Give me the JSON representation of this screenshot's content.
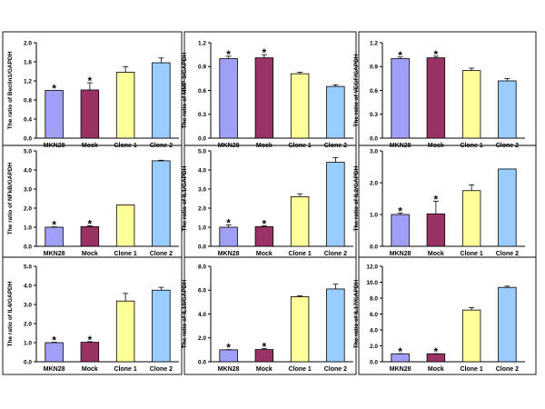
{
  "colors": [
    "#9f9ff5",
    "#993366",
    "#ffff99",
    "#99ccff"
  ],
  "chart_data": [
    {
      "type": "bar",
      "ylabel": "The ratio of Beclin1/GAPDH",
      "categories": [
        "MKN28",
        "Mock",
        "Clone 1",
        "Clone 2"
      ],
      "values": [
        1.0,
        1.01,
        1.38,
        1.58
      ],
      "errors": [
        0.0,
        0.15,
        0.12,
        0.1
      ],
      "significant": [
        true,
        true,
        false,
        false
      ],
      "ylim": [
        0,
        2.0
      ],
      "yticks": [
        "0.0",
        "0.4",
        "0.8",
        "1.2",
        "1.6",
        "2.0"
      ]
    },
    {
      "type": "bar",
      "ylabel": "The ratio of MMP-9/GAPDH",
      "categories": [
        "MKN28",
        "Mock",
        "Clone 1",
        "Clone 2"
      ],
      "values": [
        1.0,
        1.01,
        0.81,
        0.65
      ],
      "errors": [
        0.03,
        0.04,
        0.02,
        0.02
      ],
      "significant": [
        true,
        true,
        false,
        false
      ],
      "ylim": [
        0,
        1.2
      ],
      "yticks": [
        "0.0",
        "0.3",
        "0.6",
        "0.9",
        "1.2"
      ]
    },
    {
      "type": "bar",
      "ylabel": "The ratio of VEGF/GAPDH",
      "categories": [
        "MKN28",
        "Mock",
        "Clone 1",
        "Clone 2"
      ],
      "values": [
        1.0,
        1.01,
        0.85,
        0.72
      ],
      "errors": [
        0.02,
        0.02,
        0.03,
        0.03
      ],
      "significant": [
        true,
        true,
        false,
        false
      ],
      "ylim": [
        0,
        1.2
      ],
      "yticks": [
        "0.0",
        "0.3",
        "0.6",
        "0.9",
        "1.2"
      ]
    },
    {
      "type": "bar",
      "ylabel": "The ratio of NFkB/GAPDH",
      "categories": [
        "MKN28",
        "Mock",
        "Clone 1",
        "Clone 2"
      ],
      "values": [
        1.0,
        1.03,
        2.17,
        4.48
      ],
      "errors": [
        0.02,
        0.05,
        0.0,
        0.03
      ],
      "significant": [
        true,
        true,
        false,
        false
      ],
      "ylim": [
        0,
        5
      ],
      "yticks": [
        "0.0",
        "1.0",
        "2.0",
        "3.0",
        "4.0",
        "5.0"
      ]
    },
    {
      "type": "bar",
      "ylabel": "The ratio of IL1/GAPDH",
      "categories": [
        "MKN28",
        "Mock",
        "Clone 1",
        "Clone 2"
      ],
      "values": [
        1.0,
        1.03,
        2.6,
        4.4
      ],
      "errors": [
        0.12,
        0.05,
        0.15,
        0.25
      ],
      "significant": [
        true,
        true,
        false,
        false
      ],
      "ylim": [
        0,
        5
      ],
      "yticks": [
        "0.0",
        "1.0",
        "2.0",
        "3.0",
        "4.0",
        "5.0"
      ]
    },
    {
      "type": "bar",
      "ylabel": "The ratio of IL2/GAPDH",
      "categories": [
        "MKN28",
        "Mock",
        "Clone 1",
        "Clone 2"
      ],
      "values": [
        1.0,
        1.02,
        1.75,
        2.43
      ],
      "errors": [
        0.05,
        0.4,
        0.18,
        0.0
      ],
      "significant": [
        true,
        true,
        false,
        false
      ],
      "ylim": [
        0,
        3
      ],
      "yticks": [
        "0.0",
        "1.0",
        "2.0",
        "3.0"
      ]
    },
    {
      "type": "bar",
      "ylabel": "The ratio of IL4/GAPDH",
      "categories": [
        "MKN28",
        "Mock",
        "Clone 1",
        "Clone 2"
      ],
      "values": [
        1.0,
        1.02,
        3.18,
        3.75
      ],
      "errors": [
        0.02,
        0.03,
        0.4,
        0.15
      ],
      "significant": [
        true,
        true,
        false,
        false
      ],
      "ylim": [
        0,
        5
      ],
      "yticks": [
        "0.0",
        "1.0",
        "2.0",
        "3.0",
        "4.0",
        "5.0"
      ]
    },
    {
      "type": "bar",
      "ylabel": "The ratio of IL10/GAPDH",
      "categories": [
        "MKN28",
        "Mock",
        "Clone 1",
        "Clone 2"
      ],
      "values": [
        1.0,
        1.02,
        5.45,
        6.1
      ],
      "errors": [
        0.02,
        0.1,
        0.08,
        0.4
      ],
      "significant": [
        true,
        true,
        false,
        false
      ],
      "ylim": [
        0,
        8
      ],
      "yticks": [
        "0.0",
        "2.0",
        "4.0",
        "6.0",
        "8.0"
      ]
    },
    {
      "type": "bar",
      "ylabel": "The ratio of IL17/GAPDH",
      "categories": [
        "MKN28",
        "Mock",
        "Clone 1",
        "Clone 2"
      ],
      "values": [
        1.0,
        1.0,
        6.5,
        9.35
      ],
      "errors": [
        0.02,
        0.02,
        0.3,
        0.15
      ],
      "significant": [
        true,
        true,
        false,
        false
      ],
      "ylim": [
        0,
        12
      ],
      "yticks": [
        "0.0",
        "2.0",
        "4.0",
        "6.0",
        "8.0",
        "10.0",
        "12.0"
      ]
    }
  ]
}
